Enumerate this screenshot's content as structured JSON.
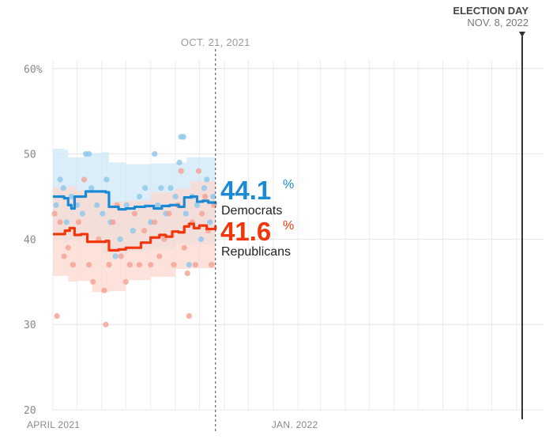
{
  "chart_data": {
    "type": "line",
    "y_ticks": [
      "60%",
      "50",
      "40",
      "30",
      "20"
    ],
    "y_tick_values": [
      60,
      50,
      40,
      30,
      20
    ],
    "ylim": [
      20,
      61
    ],
    "xlim": [
      "2021-04-01",
      "2022-11-08"
    ],
    "x_ticks": [
      {
        "date": "2021-04-01",
        "label": "APRIL 2021"
      },
      {
        "date": "2022-01-01",
        "label": "JAN. 2022"
      }
    ],
    "current_date": {
      "date": "2021-10-21",
      "label": "OCT. 21, 2021"
    },
    "election_day": {
      "date": "2022-11-08",
      "title": "ELECTION DAY",
      "label": "NOV. 8, 2022"
    },
    "series": [
      {
        "name": "Democrats",
        "color": "#1a8ad4",
        "dot_color": "#8fc9ec",
        "band_color": "#cfe7f7",
        "latest_value": "44.1",
        "values": [
          {
            "date": "2021-04-01",
            "y": 45.0
          },
          {
            "date": "2021-04-10",
            "y": 45.0
          },
          {
            "date": "2021-04-15",
            "y": 44.8
          },
          {
            "date": "2021-04-20",
            "y": 44.0
          },
          {
            "date": "2021-04-24",
            "y": 43.6
          },
          {
            "date": "2021-04-28",
            "y": 45.0
          },
          {
            "date": "2021-05-08",
            "y": 45.0
          },
          {
            "date": "2021-05-12",
            "y": 45.6
          },
          {
            "date": "2021-05-30",
            "y": 45.6
          },
          {
            "date": "2021-06-06",
            "y": 45.5
          },
          {
            "date": "2021-06-10",
            "y": 43.8
          },
          {
            "date": "2021-06-22",
            "y": 43.5
          },
          {
            "date": "2021-07-01",
            "y": 43.6
          },
          {
            "date": "2021-07-12",
            "y": 43.8
          },
          {
            "date": "2021-07-25",
            "y": 43.9
          },
          {
            "date": "2021-08-05",
            "y": 43.6
          },
          {
            "date": "2021-08-15",
            "y": 43.9
          },
          {
            "date": "2021-08-25",
            "y": 44.0
          },
          {
            "date": "2021-09-05",
            "y": 43.8
          },
          {
            "date": "2021-09-12",
            "y": 44.9
          },
          {
            "date": "2021-09-20",
            "y": 45.0
          },
          {
            "date": "2021-09-28",
            "y": 44.4
          },
          {
            "date": "2021-10-05",
            "y": 44.5
          },
          {
            "date": "2021-10-12",
            "y": 44.3
          },
          {
            "date": "2021-10-21",
            "y": 44.1
          }
        ],
        "band": [
          {
            "date": "2021-04-01",
            "lo": 40.0,
            "hi": 50.6
          },
          {
            "date": "2021-04-15",
            "lo": 40.0,
            "hi": 50.5
          },
          {
            "date": "2021-04-20",
            "lo": 39.5,
            "hi": 49.6
          },
          {
            "date": "2021-05-10",
            "lo": 40.0,
            "hi": 50.1
          },
          {
            "date": "2021-06-01",
            "lo": 40.2,
            "hi": 50.2
          },
          {
            "date": "2021-06-10",
            "lo": 38.4,
            "hi": 49.0
          },
          {
            "date": "2021-07-01",
            "lo": 38.3,
            "hi": 48.8
          },
          {
            "date": "2021-08-01",
            "lo": 38.6,
            "hi": 48.9
          },
          {
            "date": "2021-09-01",
            "lo": 38.8,
            "hi": 49.0
          },
          {
            "date": "2021-09-15",
            "lo": 39.6,
            "hi": 49.6
          },
          {
            "date": "2021-10-21",
            "lo": 39.4,
            "hi": 49.2
          }
        ],
        "polls": [
          {
            "date": "2021-04-05",
            "y": 44.0
          },
          {
            "date": "2021-04-10",
            "y": 47.0
          },
          {
            "date": "2021-04-14",
            "y": 46.0
          },
          {
            "date": "2021-04-18",
            "y": 42.0
          },
          {
            "date": "2021-04-24",
            "y": 45.0
          },
          {
            "date": "2021-05-01",
            "y": 44.0
          },
          {
            "date": "2021-05-08",
            "y": 43.0
          },
          {
            "date": "2021-05-12",
            "y": 50.0
          },
          {
            "date": "2021-05-16",
            "y": 50.0
          },
          {
            "date": "2021-05-19",
            "y": 46.0
          },
          {
            "date": "2021-05-26",
            "y": 44.0
          },
          {
            "date": "2021-06-02",
            "y": 43.0
          },
          {
            "date": "2021-06-07",
            "y": 47.0
          },
          {
            "date": "2021-06-12",
            "y": 42.0
          },
          {
            "date": "2021-06-18",
            "y": 38.0
          },
          {
            "date": "2021-06-24",
            "y": 40.0
          },
          {
            "date": "2021-07-02",
            "y": 44.0
          },
          {
            "date": "2021-07-10",
            "y": 41.0
          },
          {
            "date": "2021-07-18",
            "y": 45.0
          },
          {
            "date": "2021-07-25",
            "y": 46.0
          },
          {
            "date": "2021-08-01",
            "y": 42.0
          },
          {
            "date": "2021-08-06",
            "y": 50.0
          },
          {
            "date": "2021-08-10",
            "y": 44.0
          },
          {
            "date": "2021-08-14",
            "y": 46.0
          },
          {
            "date": "2021-08-20",
            "y": 43.0
          },
          {
            "date": "2021-08-26",
            "y": 46.0
          },
          {
            "date": "2021-09-01",
            "y": 45.0
          },
          {
            "date": "2021-09-06",
            "y": 49.0
          },
          {
            "date": "2021-09-08",
            "y": 52.0
          },
          {
            "date": "2021-09-11",
            "y": 52.0
          },
          {
            "date": "2021-09-14",
            "y": 43.0
          },
          {
            "date": "2021-09-18",
            "y": 37.0
          },
          {
            "date": "2021-09-22",
            "y": 45.0
          },
          {
            "date": "2021-09-28",
            "y": 44.0
          },
          {
            "date": "2021-10-03",
            "y": 40.0
          },
          {
            "date": "2021-10-07",
            "y": 46.0
          },
          {
            "date": "2021-10-10",
            "y": 47.0
          },
          {
            "date": "2021-10-14",
            "y": 42.0
          },
          {
            "date": "2021-10-18",
            "y": 45.0
          }
        ]
      },
      {
        "name": "Republicans",
        "color": "#f2360c",
        "dot_color": "#f5a596",
        "band_color": "#fcd8cf",
        "latest_value": "41.6",
        "values": [
          {
            "date": "2021-04-01",
            "y": 40.6
          },
          {
            "date": "2021-04-12",
            "y": 40.6
          },
          {
            "date": "2021-04-16",
            "y": 41.0
          },
          {
            "date": "2021-04-22",
            "y": 41.3
          },
          {
            "date": "2021-04-28",
            "y": 40.5
          },
          {
            "date": "2021-05-06",
            "y": 40.6
          },
          {
            "date": "2021-05-14",
            "y": 39.7
          },
          {
            "date": "2021-05-30",
            "y": 39.7
          },
          {
            "date": "2021-06-06",
            "y": 39.8
          },
          {
            "date": "2021-06-10",
            "y": 38.7
          },
          {
            "date": "2021-06-22",
            "y": 38.8
          },
          {
            "date": "2021-07-01",
            "y": 39.0
          },
          {
            "date": "2021-07-12",
            "y": 39.0
          },
          {
            "date": "2021-07-20",
            "y": 39.6
          },
          {
            "date": "2021-08-01",
            "y": 40.2
          },
          {
            "date": "2021-08-12",
            "y": 40.5
          },
          {
            "date": "2021-08-20",
            "y": 40.3
          },
          {
            "date": "2021-08-28",
            "y": 40.9
          },
          {
            "date": "2021-09-05",
            "y": 40.8
          },
          {
            "date": "2021-09-12",
            "y": 41.5
          },
          {
            "date": "2021-09-18",
            "y": 41.8
          },
          {
            "date": "2021-09-24",
            "y": 41.3
          },
          {
            "date": "2021-10-01",
            "y": 41.6
          },
          {
            "date": "2021-10-10",
            "y": 41.2
          },
          {
            "date": "2021-10-21",
            "y": 41.6
          }
        ],
        "band": [
          {
            "date": "2021-04-01",
            "lo": 35.5,
            "hi": 46.1
          },
          {
            "date": "2021-04-20",
            "lo": 35.7,
            "hi": 46.2
          },
          {
            "date": "2021-05-01",
            "lo": 35.0,
            "hi": 45.7
          },
          {
            "date": "2021-05-20",
            "lo": 35.1,
            "hi": 45.6
          },
          {
            "date": "2021-06-10",
            "lo": 33.8,
            "hi": 44.4
          },
          {
            "date": "2021-07-01",
            "lo": 33.9,
            "hi": 44.5
          },
          {
            "date": "2021-08-01",
            "lo": 35.2,
            "hi": 45.5
          },
          {
            "date": "2021-09-01",
            "lo": 35.6,
            "hi": 45.9
          },
          {
            "date": "2021-09-20",
            "lo": 36.5,
            "hi": 46.8
          },
          {
            "date": "2021-10-21",
            "lo": 36.6,
            "hi": 46.8
          }
        ],
        "polls": [
          {
            "date": "2021-04-03",
            "y": 43.0
          },
          {
            "date": "2021-04-06",
            "y": 31.0
          },
          {
            "date": "2021-04-10",
            "y": 42.0
          },
          {
            "date": "2021-04-15",
            "y": 38.0
          },
          {
            "date": "2021-04-20",
            "y": 39.0
          },
          {
            "date": "2021-04-26",
            "y": 37.0
          },
          {
            "date": "2021-05-03",
            "y": 42.0
          },
          {
            "date": "2021-05-10",
            "y": 47.0
          },
          {
            "date": "2021-05-16",
            "y": 37.0
          },
          {
            "date": "2021-05-21",
            "y": 35.0
          },
          {
            "date": "2021-05-28",
            "y": 40.0
          },
          {
            "date": "2021-06-04",
            "y": 34.0
          },
          {
            "date": "2021-06-06",
            "y": 30.0
          },
          {
            "date": "2021-06-10",
            "y": 37.0
          },
          {
            "date": "2021-06-15",
            "y": 42.0
          },
          {
            "date": "2021-06-20",
            "y": 44.0
          },
          {
            "date": "2021-06-25",
            "y": 38.0
          },
          {
            "date": "2021-07-01",
            "y": 35.0
          },
          {
            "date": "2021-07-06",
            "y": 37.0
          },
          {
            "date": "2021-07-12",
            "y": 43.0
          },
          {
            "date": "2021-07-18",
            "y": 37.0
          },
          {
            "date": "2021-07-24",
            "y": 41.0
          },
          {
            "date": "2021-08-01",
            "y": 37.0
          },
          {
            "date": "2021-08-06",
            "y": 42.0
          },
          {
            "date": "2021-08-12",
            "y": 38.0
          },
          {
            "date": "2021-08-18",
            "y": 40.0
          },
          {
            "date": "2021-08-24",
            "y": 43.0
          },
          {
            "date": "2021-08-30",
            "y": 37.0
          },
          {
            "date": "2021-09-04",
            "y": 44.0
          },
          {
            "date": "2021-09-08",
            "y": 48.0
          },
          {
            "date": "2021-09-12",
            "y": 39.0
          },
          {
            "date": "2021-09-16",
            "y": 36.0
          },
          {
            "date": "2021-09-18",
            "y": 31.0
          },
          {
            "date": "2021-09-22",
            "y": 42.0
          },
          {
            "date": "2021-09-26",
            "y": 37.0
          },
          {
            "date": "2021-09-30",
            "y": 48.0
          },
          {
            "date": "2021-10-04",
            "y": 43.0
          },
          {
            "date": "2021-10-08",
            "y": 45.0
          },
          {
            "date": "2021-10-12",
            "y": 41.0
          },
          {
            "date": "2021-10-16",
            "y": 37.0
          },
          {
            "date": "2021-10-19",
            "y": 44.0
          }
        ]
      }
    ]
  }
}
